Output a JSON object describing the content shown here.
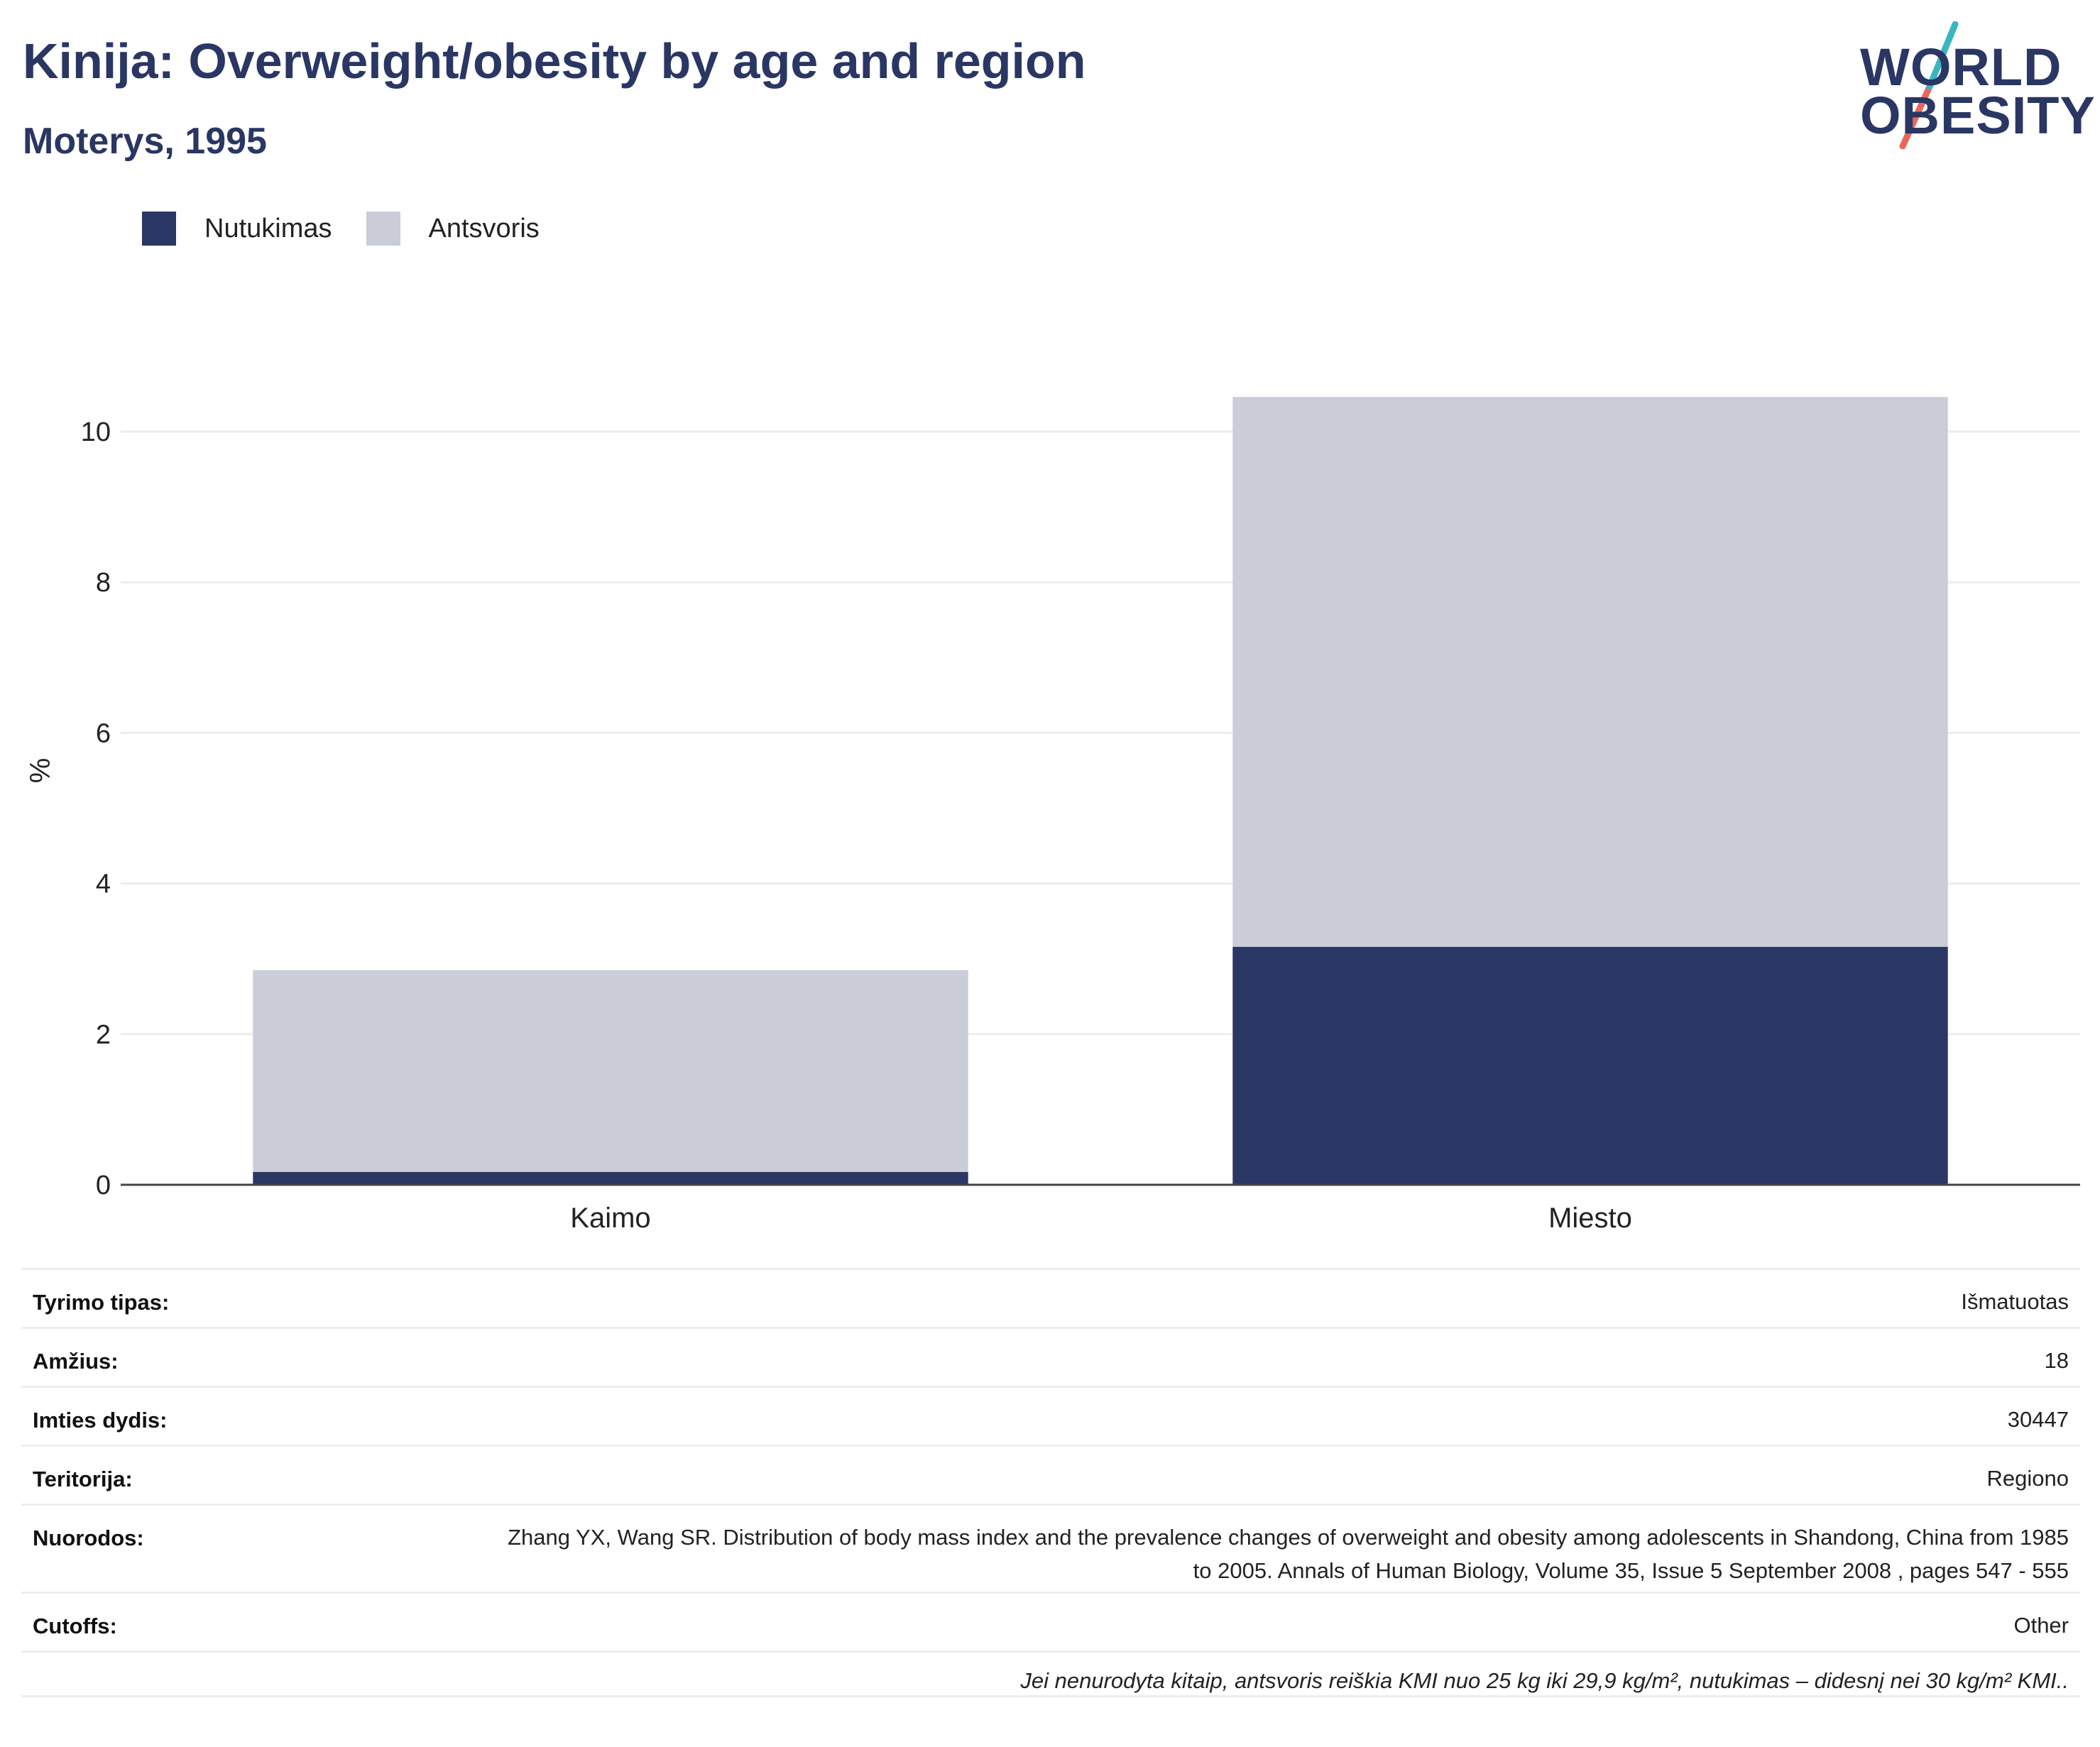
{
  "header": {
    "title": "Kinija: Overweight/obesity by age and region",
    "subtitle": "Moterys, 1995"
  },
  "logo": {
    "line1": "WORLD",
    "line2": "OBESITY",
    "colors": {
      "text": "#2a3663",
      "teal": "#3bb6c0",
      "coral": "#e8685a"
    }
  },
  "colors": {
    "obesity": "#2a3663",
    "overweight": "#cacdd8",
    "grid": "#ececf2",
    "axis": "#444444"
  },
  "chart_data": {
    "type": "bar",
    "stacked": true,
    "categories": [
      "Kaimo",
      "Miesto"
    ],
    "series": [
      {
        "name": "Nutukimas",
        "values": [
          0.17,
          3.16
        ]
      },
      {
        "name": "Antsvoris",
        "values": [
          2.68,
          7.3
        ]
      }
    ],
    "ylabel": "%",
    "xlabel": "",
    "ylim": [
      0,
      10.5
    ],
    "yticks": [
      0,
      2,
      4,
      6,
      8,
      10
    ],
    "grid": true,
    "legend": "top-left"
  },
  "info": {
    "rows": [
      {
        "label": "Tyrimo tipas:",
        "value": "Išmatuotas"
      },
      {
        "label": "Amžius:",
        "value": "18"
      },
      {
        "label": "Imties dydis:",
        "value": "30447"
      },
      {
        "label": "Teritorija:",
        "value": "Regiono"
      },
      {
        "label": "Nuorodos:",
        "value": "Zhang YX, Wang SR. Distribution of body mass index and the prevalence changes of overweight and obesity among adolescents in Shandong, China from 1985 to 2005. Annals of Human Biology, Volume 35, Issue 5 September 2008 , pages 547 - 555"
      },
      {
        "label": "Cutoffs:",
        "value": "Other"
      }
    ],
    "note": "Jei nenurodyta kitaip, antsvoris reiškia KMI nuo 25 kg iki 29,9 kg/m², nutukimas – didesnį nei 30 kg/m² KMI.."
  }
}
